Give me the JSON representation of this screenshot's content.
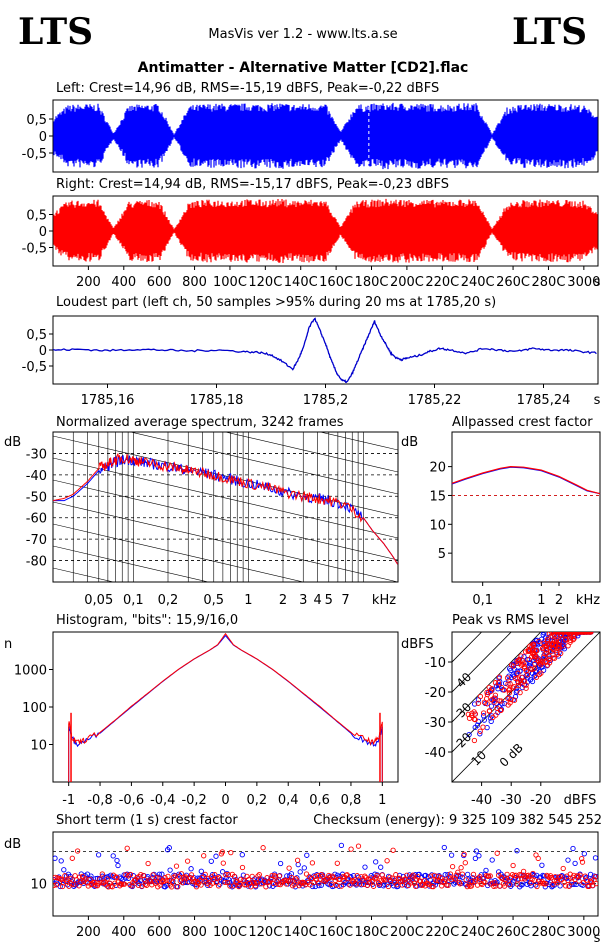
{
  "header": {
    "logo_left": "LTS",
    "logo_right": "LTS",
    "app_title": "MasVis ver 1.2 - www.lts.a.se",
    "file_title": "Antimatter - Alternative Matter [CD2].flac"
  },
  "colors": {
    "left": "#0000ff",
    "right": "#ff0000",
    "background": "#ffffff",
    "frame": "#000000"
  },
  "chart_data": [
    {
      "id": "left_waveform",
      "type": "area",
      "title": "Left: Crest=14,96 dB, RMS=-15,19 dBFS, Peak=-0,22 dBFS",
      "yticks": [
        "0,5",
        "0",
        "-0,5"
      ],
      "ylim": [
        -1,
        1
      ],
      "xlim": [
        0,
        3080
      ],
      "note_unlabeled_marker": 1785,
      "series": [
        {
          "name": "Left",
          "color": "#0000ff",
          "envelope_peak": [
            0.55,
            0.92,
            0.95,
            0.95,
            0.08,
            0.9,
            0.95,
            0.95,
            0.05,
            0.9,
            0.95,
            0.96,
            0.95,
            0.97,
            0.95,
            0.98,
            0.94,
            0.96,
            0.95,
            0.12,
            0.92,
            0.95,
            0.98,
            0.97,
            0.97,
            0.95,
            0.94,
            0.97,
            0.97,
            0.06,
            0.85,
            0.94,
            0.96,
            0.95,
            0.95,
            0.92,
            0.6
          ]
        }
      ]
    },
    {
      "id": "right_waveform",
      "type": "area",
      "title": "Right: Crest=14,94 dB, RMS=-15,17 dBFS, Peak=-0,23 dBFS",
      "yticks": [
        "0,5",
        "0",
        "-0,5"
      ],
      "ylim": [
        -1,
        1
      ],
      "xlim": [
        0,
        3080
      ],
      "xticks": [
        200,
        400,
        600,
        800,
        1000,
        1200,
        1400,
        1600,
        1800,
        2000,
        2200,
        2400,
        2600,
        2800,
        3000
      ],
      "xtick_labels": [
        "200",
        "400",
        "600",
        "800",
        "100C",
        "120C",
        "140C",
        "160C",
        "180C",
        "200C",
        "220C",
        "240C",
        "260C",
        "280C",
        "3000"
      ],
      "xlabel": "s",
      "series": [
        {
          "name": "Right",
          "color": "#ff0000",
          "envelope_peak": [
            0.55,
            0.92,
            0.95,
            0.95,
            0.08,
            0.9,
            0.95,
            0.95,
            0.05,
            0.9,
            0.95,
            0.96,
            0.95,
            0.97,
            0.95,
            0.98,
            0.94,
            0.96,
            0.95,
            0.12,
            0.92,
            0.95,
            0.98,
            0.97,
            0.97,
            0.95,
            0.94,
            0.97,
            0.97,
            0.06,
            0.85,
            0.94,
            0.96,
            0.95,
            0.95,
            0.92,
            0.6
          ]
        }
      ]
    },
    {
      "id": "loudest_part",
      "type": "line",
      "title": "Loudest part (left  ch, 50 samples >95% during 20 ms at 1785,20 s)",
      "xlim": [
        1785.15,
        1785.25
      ],
      "ylim": [
        -1,
        1
      ],
      "yticks": [
        "0,5",
        "0",
        "-0,5"
      ],
      "xticks": [
        "1785,16",
        "1785,18",
        "1785,2",
        "1785,22",
        "1785,24"
      ],
      "xlabel": "s",
      "series": [
        {
          "name": "left",
          "color": "#0000cc",
          "x": [
            1785.15,
            1785.155,
            1785.16,
            1785.165,
            1785.17,
            1785.175,
            1785.18,
            1785.185,
            1785.188,
            1785.19,
            1785.192,
            1785.194,
            1785.195,
            1785.196,
            1785.197,
            1785.198,
            1785.199,
            1785.2,
            1785.201,
            1785.202,
            1785.203,
            1785.204,
            1785.205,
            1785.206,
            1785.207,
            1785.208,
            1785.209,
            1785.21,
            1785.211,
            1785.212,
            1785.213,
            1785.214,
            1785.215,
            1785.217,
            1785.219,
            1785.221,
            1785.223,
            1785.226,
            1785.229,
            1785.232,
            1785.235,
            1785.238,
            1785.241,
            1785.244,
            1785.247,
            1785.25
          ],
          "y": [
            0.0,
            0.02,
            -0.02,
            0.02,
            0.0,
            -0.03,
            0.0,
            -0.05,
            -0.08,
            -0.15,
            -0.35,
            -0.6,
            -0.3,
            0.1,
            0.7,
            1.0,
            0.6,
            0.2,
            -0.3,
            -0.7,
            -0.95,
            -1.0,
            -0.7,
            -0.3,
            0.1,
            0.5,
            0.9,
            0.5,
            0.2,
            -0.1,
            -0.25,
            -0.3,
            -0.25,
            -0.18,
            -0.05,
            0.05,
            0.0,
            -0.1,
            0.05,
            0.0,
            -0.05,
            0.05,
            0.0,
            0.0,
            -0.05,
            -0.1
          ]
        }
      ]
    },
    {
      "id": "normalized_spectrum",
      "type": "line",
      "title": "Normalized average spectrum, 3242 frames",
      "ylabel": "dB",
      "xlabel": "kHz",
      "xscale": "log",
      "xlim": [
        0.02,
        20
      ],
      "ylim": [
        -90,
        -20
      ],
      "yticks": [
        -30,
        -40,
        -50,
        -60,
        -70,
        -80
      ],
      "xtick_values": [
        0.05,
        0.1,
        0.2,
        0.5,
        1,
        2,
        3,
        4,
        5,
        7
      ],
      "xtick_labels": [
        "0,05",
        "0,1",
        "0,2",
        "0,5",
        "1",
        "2",
        "3",
        "4",
        "5",
        "7"
      ],
      "series": [
        {
          "name": "Left",
          "color": "#0000ff",
          "x": [
            0.02,
            0.025,
            0.03,
            0.04,
            0.05,
            0.06,
            0.07,
            0.08,
            0.1,
            0.12,
            0.15,
            0.2,
            0.25,
            0.3,
            0.4,
            0.5,
            0.7,
            1,
            1.5,
            2,
            3,
            4,
            5,
            7,
            10,
            12,
            15,
            18,
            20
          ],
          "y": [
            -52,
            -52,
            -50,
            -44,
            -38,
            -36,
            -34,
            -33,
            -33,
            -34,
            -35,
            -36,
            -37,
            -38,
            -39,
            -40,
            -42,
            -44,
            -46,
            -48,
            -50,
            -51,
            -52,
            -54,
            -60,
            -66,
            -72,
            -78,
            -82
          ]
        },
        {
          "name": "Right",
          "color": "#ff0000",
          "x": [
            0.02,
            0.025,
            0.03,
            0.04,
            0.05,
            0.06,
            0.07,
            0.08,
            0.1,
            0.12,
            0.15,
            0.2,
            0.25,
            0.3,
            0.4,
            0.5,
            0.7,
            1,
            1.5,
            2,
            3,
            4,
            5,
            7,
            10,
            12,
            15,
            18,
            20
          ],
          "y": [
            -52,
            -51,
            -49,
            -43,
            -37,
            -35,
            -33,
            -32,
            -33,
            -34,
            -35,
            -36,
            -37,
            -38,
            -39,
            -40,
            -42,
            -44,
            -46,
            -48,
            -50,
            -51,
            -52,
            -54,
            -60,
            -66,
            -72,
            -78,
            -82
          ]
        }
      ]
    },
    {
      "id": "allpassed_crest",
      "type": "line",
      "title": "Allpassed crest factor",
      "ylabel": "dB",
      "xlabel": "kHz",
      "xscale": "log",
      "xlim": [
        0.03,
        10
      ],
      "ylim": [
        0,
        26
      ],
      "yticks": [
        20,
        15,
        10,
        5
      ],
      "xtick_values": [
        0.1,
        1,
        2
      ],
      "xtick_labels": [
        "0,1",
        "1",
        "2"
      ],
      "reference_line_db": 15,
      "series": [
        {
          "name": "Left",
          "color": "#0000ff",
          "x": [
            0.03,
            0.05,
            0.1,
            0.2,
            0.3,
            0.5,
            1,
            2,
            4,
            6,
            10
          ],
          "y": [
            17.0,
            17.8,
            18.8,
            19.6,
            19.9,
            19.8,
            19.3,
            18.2,
            16.7,
            15.8,
            15.3
          ]
        },
        {
          "name": "Right",
          "color": "#ff0000",
          "x": [
            0.03,
            0.05,
            0.1,
            0.2,
            0.3,
            0.5,
            1,
            2,
            4,
            6,
            10
          ],
          "y": [
            17.1,
            17.9,
            18.9,
            19.7,
            20.0,
            19.9,
            19.4,
            18.3,
            16.8,
            15.9,
            15.3
          ]
        }
      ]
    },
    {
      "id": "histogram",
      "type": "line",
      "title": "Histogram, \"bits\": 15,9/16,0",
      "ylabel": "n",
      "yscale": "log",
      "ylim": [
        1,
        10000
      ],
      "yticks": [
        1000,
        100,
        10
      ],
      "yticks_labels": [
        "1000",
        "100",
        "10"
      ],
      "xlim": [
        -1.1,
        1.1
      ],
      "xticks": [
        -1,
        -0.8,
        -0.6,
        -0.4,
        -0.2,
        0,
        0.2,
        0.4,
        0.6,
        0.8,
        1
      ],
      "xtick_labels": [
        "-1",
        "-0,8",
        "-0,6",
        "-0,4",
        "-0,2",
        "0",
        "0,2",
        "0,4",
        "0,6",
        "0,8",
        "1"
      ],
      "series": [
        {
          "name": "Left",
          "color": "#0000ff",
          "x": [
            -1,
            -0.98,
            -0.95,
            -0.9,
            -0.8,
            -0.7,
            -0.6,
            -0.5,
            -0.4,
            -0.3,
            -0.2,
            -0.1,
            -0.05,
            0,
            0.05,
            0.1,
            0.2,
            0.3,
            0.4,
            0.5,
            0.6,
            0.7,
            0.8,
            0.9,
            0.95,
            0.98,
            1
          ],
          "y": [
            30,
            15,
            10,
            12,
            20,
            45,
            100,
            220,
            480,
            1000,
            1900,
            3300,
            4500,
            8000,
            4500,
            3300,
            1900,
            1000,
            480,
            220,
            100,
            45,
            20,
            12,
            10,
            15,
            30
          ]
        },
        {
          "name": "Right",
          "color": "#ff0000",
          "x": [
            -1,
            -0.98,
            -0.95,
            -0.9,
            -0.8,
            -0.7,
            -0.6,
            -0.5,
            -0.4,
            -0.3,
            -0.2,
            -0.1,
            -0.05,
            0,
            0.05,
            0.1,
            0.2,
            0.3,
            0.4,
            0.5,
            0.6,
            0.7,
            0.8,
            0.9,
            0.95,
            0.98,
            1
          ],
          "y": [
            40,
            16,
            11,
            13,
            21,
            46,
            105,
            225,
            490,
            1010,
            1920,
            3320,
            4600,
            9000,
            4600,
            3320,
            1920,
            1010,
            490,
            225,
            105,
            46,
            21,
            13,
            11,
            16,
            40
          ]
        }
      ]
    },
    {
      "id": "peak_vs_rms",
      "type": "scatter",
      "title": "Peak vs RMS level",
      "ylabel": "dBFS",
      "xlabel": "dBFS",
      "xlim": [
        -50,
        0
      ],
      "ylim": [
        -50,
        0
      ],
      "xticks": [
        -40,
        -30,
        -20
      ],
      "yticks": [
        -10,
        -20,
        -30,
        -40
      ],
      "diagonal_labels": [
        "40",
        "30",
        "20",
        "10",
        "0 dB"
      ],
      "series": [
        {
          "name": "Left",
          "color": "#0000ff",
          "points": "cluster along crest 6-20 dB, RMS -45 to -3"
        },
        {
          "name": "Right",
          "color": "#ff0000",
          "points": "cluster along crest 6-20 dB, RMS -45 to -3"
        }
      ]
    },
    {
      "id": "short_term_crest",
      "type": "scatter",
      "title": "Short term (1 s) crest factor",
      "checksum_label": "Checksum (energy):  9 325 109 382 545 252",
      "ylabel": "dB",
      "yticks": [
        "10"
      ],
      "reference_lines_db": [
        10,
        20
      ],
      "xlim": [
        0,
        3080
      ],
      "xticks": [
        200,
        400,
        600,
        800,
        1000,
        1200,
        1400,
        1600,
        1800,
        2000,
        2200,
        2400,
        2600,
        2800,
        3000
      ],
      "xtick_labels": [
        "200",
        "400",
        "600",
        "800",
        "100C",
        "120C",
        "140C",
        "160C",
        "180C",
        "200C",
        "220C",
        "240C",
        "260C",
        "280C",
        "3000"
      ],
      "xlabel": "s",
      "series": [
        {
          "name": "Left",
          "color": "#0000ff",
          "typical_range_db": [
            7,
            22
          ]
        },
        {
          "name": "Right",
          "color": "#ff0000",
          "typical_range_db": [
            7,
            22
          ]
        }
      ]
    }
  ]
}
